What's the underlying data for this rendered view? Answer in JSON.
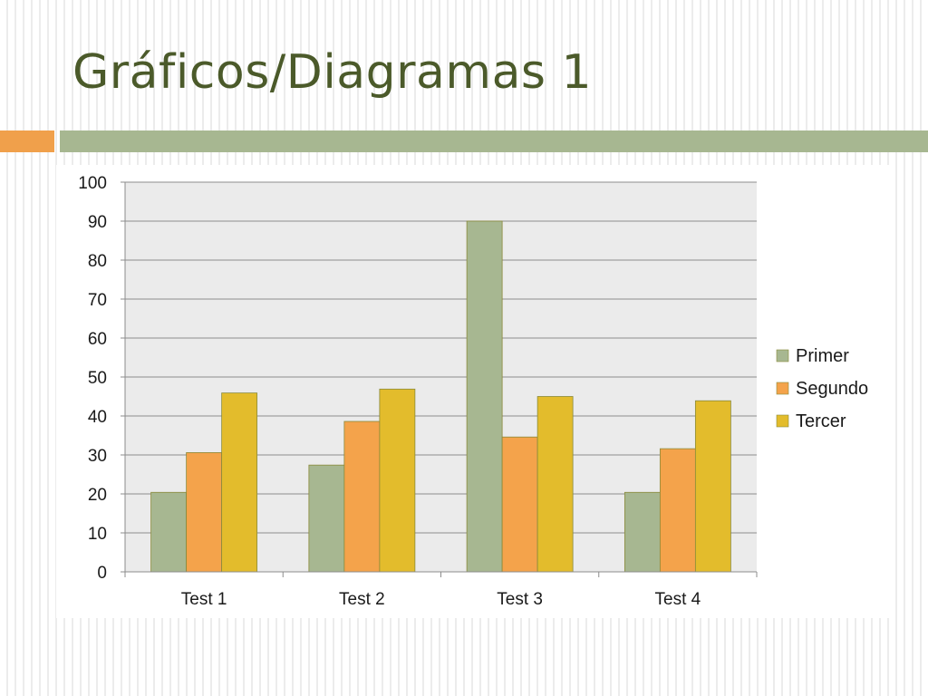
{
  "slide": {
    "title": "Gráficos/Diagramas 1"
  },
  "colors": {
    "title": "#4b5a2a",
    "accent_orange": "#f0a04b",
    "accent_green": "#a7b791",
    "plot_background": "#ebebeb",
    "gridline": "#8c8c8c"
  },
  "chart_data": {
    "type": "bar",
    "categories": [
      "Test 1",
      "Test 2",
      "Test 3",
      "Test 4"
    ],
    "series": [
      {
        "name": "Primer",
        "color": "#a7b791",
        "values": [
          20.4,
          27.4,
          90,
          20.4
        ]
      },
      {
        "name": "Segundo",
        "color": "#f4a34b",
        "values": [
          30.6,
          38.6,
          34.6,
          31.6
        ]
      },
      {
        "name": "Tercer",
        "color": "#e3bc2c",
        "values": [
          45.9,
          46.9,
          45,
          43.9
        ]
      }
    ],
    "ylim": [
      0,
      100
    ],
    "yticks": [
      "0",
      "10",
      "20",
      "30",
      "40",
      "50",
      "60",
      "70",
      "80",
      "90",
      "100"
    ],
    "grid": true,
    "legend_position": "right"
  }
}
